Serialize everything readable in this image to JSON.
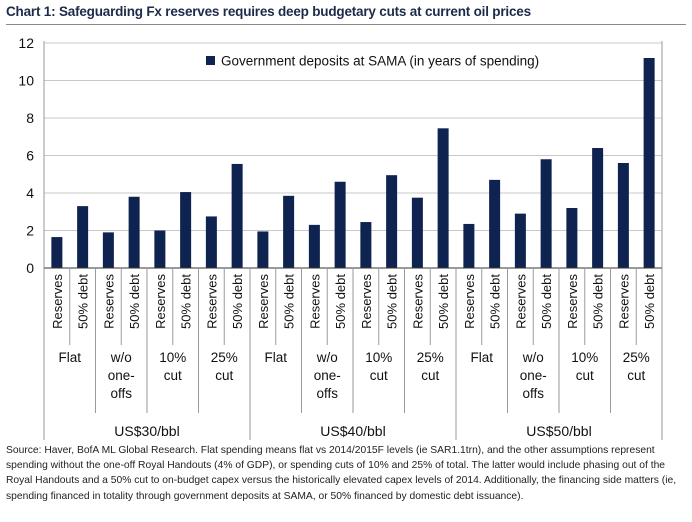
{
  "chart_title": "Chart 1: Safeguarding Fx reserves requires deep budgetary cuts at current oil prices",
  "source_note": "Source: Haver, BofA ML Global Research. Flat spending means flat vs 2014/2015F levels (ie SAR1.1trn), and the other assumptions represent spending without the one-off Royal Handouts (4% of GDP), or spending cuts of 10% and 25% of total. The latter would include phasing out of the Royal Handouts and a 50% cut to on-budget capex versus the historically elevated capex levels of 2014. Additionally, the financing side matters (ie, spending financed in totality through government deposits at SAMA, or 50% financed by domestic debt issuance).",
  "chart_data": {
    "type": "bar",
    "title": "Chart 1: Safeguarding Fx reserves requires deep budgetary cuts at current oil prices",
    "legend": {
      "label": "Government deposits at SAMA (in years of spending)",
      "placement": "top-center"
    },
    "ylim": [
      0,
      12
    ],
    "yticks": [
      0,
      2,
      4,
      6,
      8,
      10,
      12
    ],
    "grid": true,
    "bar_color": "#0f2350",
    "categories": [
      "Reserves",
      "50% debt",
      "Reserves",
      "50% debt",
      "Reserves",
      "50% debt",
      "Reserves",
      "50% debt",
      "Reserves",
      "50% debt",
      "Reserves",
      "50% debt",
      "Reserves",
      "50% debt",
      "Reserves",
      "50% debt",
      "Reserves",
      "50% debt",
      "Reserves",
      "50% debt",
      "Reserves",
      "50% debt",
      "Reserves",
      "50% debt"
    ],
    "values": [
      1.65,
      3.3,
      1.9,
      3.8,
      2.0,
      4.05,
      2.75,
      5.55,
      1.95,
      3.85,
      2.3,
      4.6,
      2.45,
      4.95,
      3.75,
      7.45,
      2.35,
      4.7,
      2.9,
      5.8,
      3.2,
      6.4,
      5.6,
      11.2
    ],
    "scenarios": [
      {
        "label": [
          "Flat"
        ]
      },
      {
        "label": [
          "w/o",
          "one-",
          "offs"
        ]
      },
      {
        "label": [
          "10%",
          "cut"
        ]
      },
      {
        "label": [
          "25%",
          "cut"
        ]
      },
      {
        "label": [
          "Flat"
        ]
      },
      {
        "label": [
          "w/o",
          "one-",
          "offs"
        ]
      },
      {
        "label": [
          "10%",
          "cut"
        ]
      },
      {
        "label": [
          "25%",
          "cut"
        ]
      },
      {
        "label": [
          "Flat"
        ]
      },
      {
        "label": [
          "w/o",
          "one-",
          "offs"
        ]
      },
      {
        "label": [
          "10%",
          "cut"
        ]
      },
      {
        "label": [
          "25%",
          "cut"
        ]
      }
    ],
    "price_groups": [
      "US$30/bbl",
      "US$40/bbl",
      "US$50/bbl"
    ]
  }
}
